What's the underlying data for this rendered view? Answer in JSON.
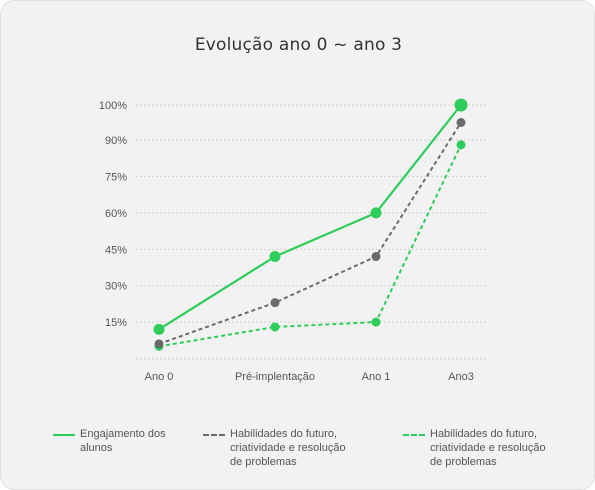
{
  "chart_data": {
    "type": "line",
    "title": "Evolução ano 0 ~ ano 3",
    "xlabel": "",
    "ylabel": "",
    "categories": [
      "Ano 0",
      "Pré-implentação",
      "Ano 1",
      "Ano3"
    ],
    "y_ticks": [
      "15%",
      "30%",
      "45%",
      "60%",
      "75%",
      "90%",
      "100%"
    ],
    "y_tick_values": [
      15,
      30,
      45,
      60,
      75,
      90,
      100
    ],
    "ylim": [
      0,
      100
    ],
    "grid": true,
    "legend_position": "bottom",
    "series": [
      {
        "name": "Engajamento dos alunos",
        "values": [
          12,
          42,
          60,
          100
        ],
        "color": "#2ecc5a",
        "style": "solid",
        "marker": "large-circle"
      },
      {
        "name": "Habilidades do futuro, criatividade e resolução de problemas",
        "values": [
          6,
          23,
          42,
          95
        ],
        "color": "#6b6b6b",
        "style": "dashed",
        "marker": "circle"
      },
      {
        "name": "Habilidades do futuro, criatividade e resolução de problemas",
        "values": [
          5,
          13,
          15,
          88
        ],
        "color": "#2ecc5a",
        "style": "dashed",
        "marker": "circle"
      }
    ]
  },
  "legend": {
    "items": [
      {
        "label": "Engajamento dos alunos",
        "color": "#2ecc5a",
        "style": "solid"
      },
      {
        "label": "Habilidades do futuro, criatividade e resolução de problemas",
        "color": "#6b6b6b",
        "style": "dashed"
      },
      {
        "label": "Habilidades do futuro, criatividade e resolução de problemas",
        "color": "#2ecc5a",
        "style": "dashed"
      }
    ]
  }
}
